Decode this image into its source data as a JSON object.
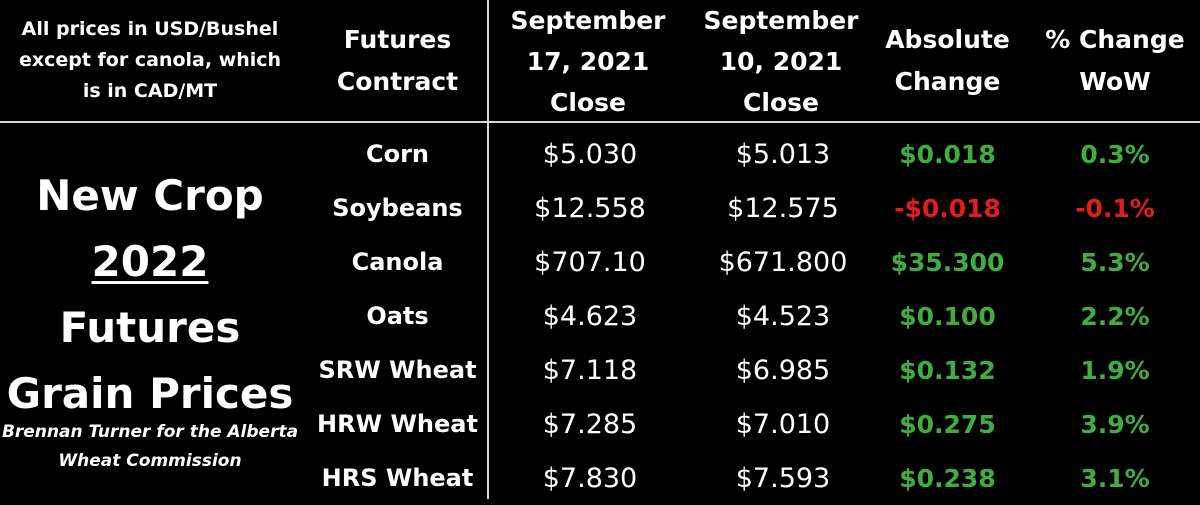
{
  "header": {
    "note": "All prices in USD/Bushel\nexcept for canola, which\nis in CAD/MT",
    "futures_contract": "Futures\nContract",
    "sep17": "September\n17, 2021\nClose",
    "sep10": "September\n10, 2021\nClose",
    "absolute_change": "Absolute\nChange",
    "pct_change": "% Change\nWoW"
  },
  "title": {
    "line1": "New Crop",
    "line2_year": "2022",
    "line2_rest": " Futures",
    "line3": "Grain Prices"
  },
  "credit": {
    "line1": "Brennan Turner for the Alberta",
    "line2": "Wheat Commission"
  },
  "colors": {
    "positive": "#3fae3f",
    "negative": "#e11d1d",
    "background": "#000000",
    "gridline": "#d8d8d8"
  },
  "rows": [
    {
      "name": "Corn",
      "sep17": "$5.030",
      "sep10": "$5.013",
      "abs": "$0.018",
      "pct": "0.3%",
      "dir": "pos"
    },
    {
      "name": "Soybeans",
      "sep17": "$12.558",
      "sep10": "$12.575",
      "abs": "-$0.018",
      "pct": "-0.1%",
      "dir": "neg"
    },
    {
      "name": "Canola",
      "sep17": "$707.10",
      "sep10": "$671.800",
      "abs": "$35.300",
      "pct": "5.3%",
      "dir": "pos"
    },
    {
      "name": "Oats",
      "sep17": "$4.623",
      "sep10": "$4.523",
      "abs": "$0.100",
      "pct": "2.2%",
      "dir": "pos"
    },
    {
      "name": "SRW Wheat",
      "sep17": "$7.118",
      "sep10": "$6.985",
      "abs": "$0.132",
      "pct": "1.9%",
      "dir": "pos"
    },
    {
      "name": "HRW Wheat",
      "sep17": "$7.285",
      "sep10": "$7.010",
      "abs": "$0.275",
      "pct": "3.9%",
      "dir": "pos"
    },
    {
      "name": "HRS Wheat",
      "sep17": "$7.830",
      "sep10": "$7.593",
      "abs": "$0.238",
      "pct": "3.1%",
      "dir": "pos"
    }
  ]
}
